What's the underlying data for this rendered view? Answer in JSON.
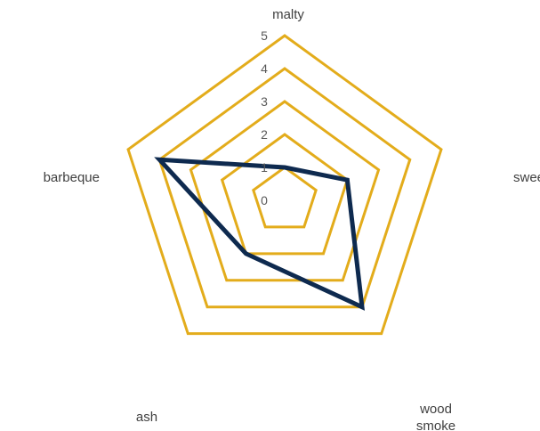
{
  "chart_data": {
    "type": "radar",
    "categories": [
      "malty",
      "sweet",
      "wood smoke",
      "ash",
      "barbeque"
    ],
    "category_lines": [
      [
        "malty"
      ],
      [
        "sweet"
      ],
      [
        "wood",
        "smoke"
      ],
      [
        "ash"
      ],
      [
        "barbeque"
      ]
    ],
    "series": [
      {
        "values": [
          1,
          2,
          4,
          2,
          4
        ],
        "color": "#0e2a4f"
      }
    ],
    "rlim": [
      0,
      5
    ],
    "ticks": [
      0,
      1,
      2,
      3,
      4,
      5
    ],
    "grid_color": "#e3ac1b",
    "grid": true,
    "legend": "none"
  }
}
